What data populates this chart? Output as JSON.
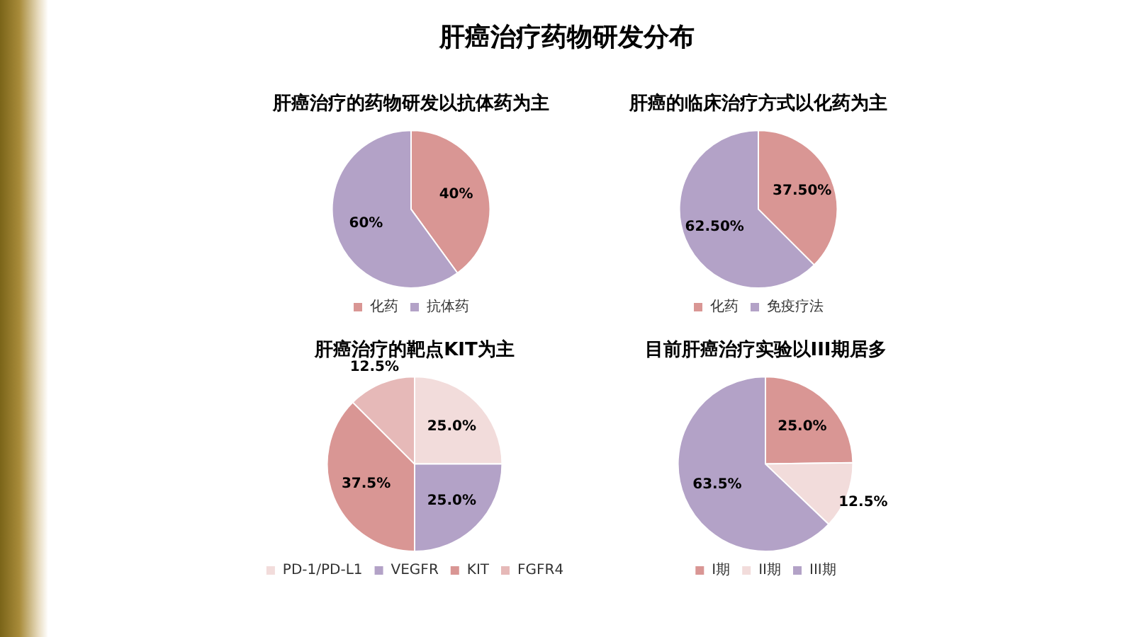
{
  "chart_data": [
    {
      "type": "other",
      "title": "肝癌治疗药物研发分布"
    },
    {
      "type": "pie",
      "title": "肝癌治疗的药物研发以抗体药为主",
      "categories": [
        "化药",
        "抗体药"
      ],
      "values": [
        40,
        60
      ],
      "colors": [
        "#d99694",
        "#b3a2c7"
      ],
      "value_labels": [
        "40%",
        "60%"
      ],
      "legend": "bottom"
    },
    {
      "type": "pie",
      "title": "肝癌的临床治疗方式以化药为主",
      "categories": [
        "化药",
        "免疫疗法"
      ],
      "values": [
        37.5,
        62.5
      ],
      "colors": [
        "#d99694",
        "#b3a2c7"
      ],
      "value_labels": [
        "37.50%",
        "62.50%"
      ],
      "legend": "bottom"
    },
    {
      "type": "pie",
      "title": "肝癌治疗的靶点KIT为主",
      "categories": [
        "PD-1/PD-L1",
        "VEGFR",
        "KIT",
        "FGFR4"
      ],
      "values": [
        25.0,
        25.0,
        37.5,
        12.5
      ],
      "colors": [
        "#f2dcdb",
        "#b3a2c7",
        "#d99694",
        "#e6b9b8"
      ],
      "value_labels": [
        "25.0%",
        "25.0%",
        "37.5%",
        "12.5%"
      ],
      "legend": "bottom"
    },
    {
      "type": "pie",
      "title": "目前肝癌治疗实验以III期居多",
      "categories": [
        "I期",
        "II期",
        "III期"
      ],
      "values": [
        25.0,
        12.5,
        63.5
      ],
      "colors": [
        "#d99694",
        "#f2dcdb",
        "#b3a2c7"
      ],
      "value_labels": [
        "25.0%",
        "12.5%",
        "63.5%"
      ],
      "legend": "bottom"
    }
  ]
}
